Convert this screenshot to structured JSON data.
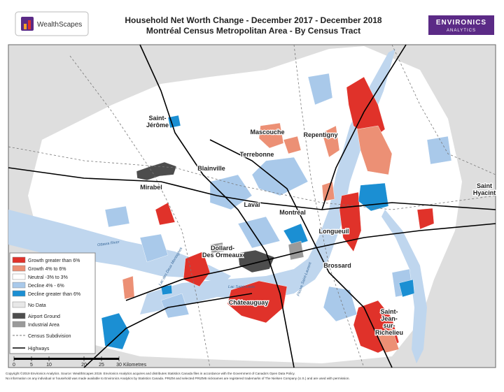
{
  "header": {
    "title": "Household Net Worth Change - December 2017 - December 2018",
    "subtitle": "Montréal Census Metropolitan Area - By Census Tract",
    "left_logo": "WealthScapes",
    "right_logo": [
      "ENVIRONICS",
      "ANALYTICS"
    ]
  },
  "legend": {
    "items": [
      {
        "label": "Growth greater than 6%",
        "color": "#e0322a"
      },
      {
        "label": "Growth 4% to 6%",
        "color": "#ec9075"
      },
      {
        "label": "Neutral -3% to 3%",
        "color": "#ffffff"
      },
      {
        "label": "Decline 4% - 6%",
        "color": "#a9c9ea"
      },
      {
        "label": "Decline greater than 6%",
        "color": "#1b8fd3"
      },
      {
        "label": "No Data",
        "color": "#e8e8e8"
      },
      {
        "label": "Airport Ground",
        "color": "#4d4d4d"
      },
      {
        "label": "Industrial Area",
        "color": "#9a9a9a"
      },
      {
        "label": "Census Subdivision",
        "color": "#777777"
      },
      {
        "label": "Highways",
        "color": "#000000"
      }
    ]
  },
  "places": [
    {
      "lines": [
        "Saint-",
        "Jérôme"
      ]
    },
    {
      "lines": [
        "Mascouche"
      ]
    },
    {
      "lines": [
        "Repentigny"
      ]
    },
    {
      "lines": [
        "Terrebonne"
      ]
    },
    {
      "lines": [
        "Blainville"
      ]
    },
    {
      "lines": [
        "Mirabel"
      ]
    },
    {
      "lines": [
        "Laval"
      ]
    },
    {
      "lines": [
        "Montréal"
      ]
    },
    {
      "lines": [
        "Longueuil"
      ]
    },
    {
      "lines": [
        "Saint",
        "Hyacint"
      ]
    },
    {
      "lines": [
        "Dollard-",
        "Des Ormeaux"
      ]
    },
    {
      "lines": [
        "Brossard"
      ]
    },
    {
      "lines": [
        "Châteauguay"
      ]
    },
    {
      "lines": [
        "Saint-",
        "Jean-",
        "sur-",
        "Richelieu"
      ]
    }
  ],
  "water": [
    {
      "label": "Ottawa River"
    },
    {
      "label": "Lac des Deux Montagnes"
    },
    {
      "label": "Lac Saint-Louis"
    },
    {
      "label": "Fleuve Saint-Laurent"
    }
  ],
  "scale_bar": {
    "ticks": [
      0,
      5,
      10,
      20,
      25,
      30
    ],
    "unit": "Kilometres"
  },
  "footer": [
    "Copyright ©2019 Environics Analytics. Source: WealthScapes 2019. Environics Analytics acquires and distributes Statistics Canada files in accordance with the Government of Canada's Open Data Policy.",
    "No information on any individual or household was made available to Environics Analytics by Statistics Canada. PRIZM and selected PRIZM5 nicknames are registered trademarks of The Nielsen Company (U.S.) and are used with permission."
  ]
}
